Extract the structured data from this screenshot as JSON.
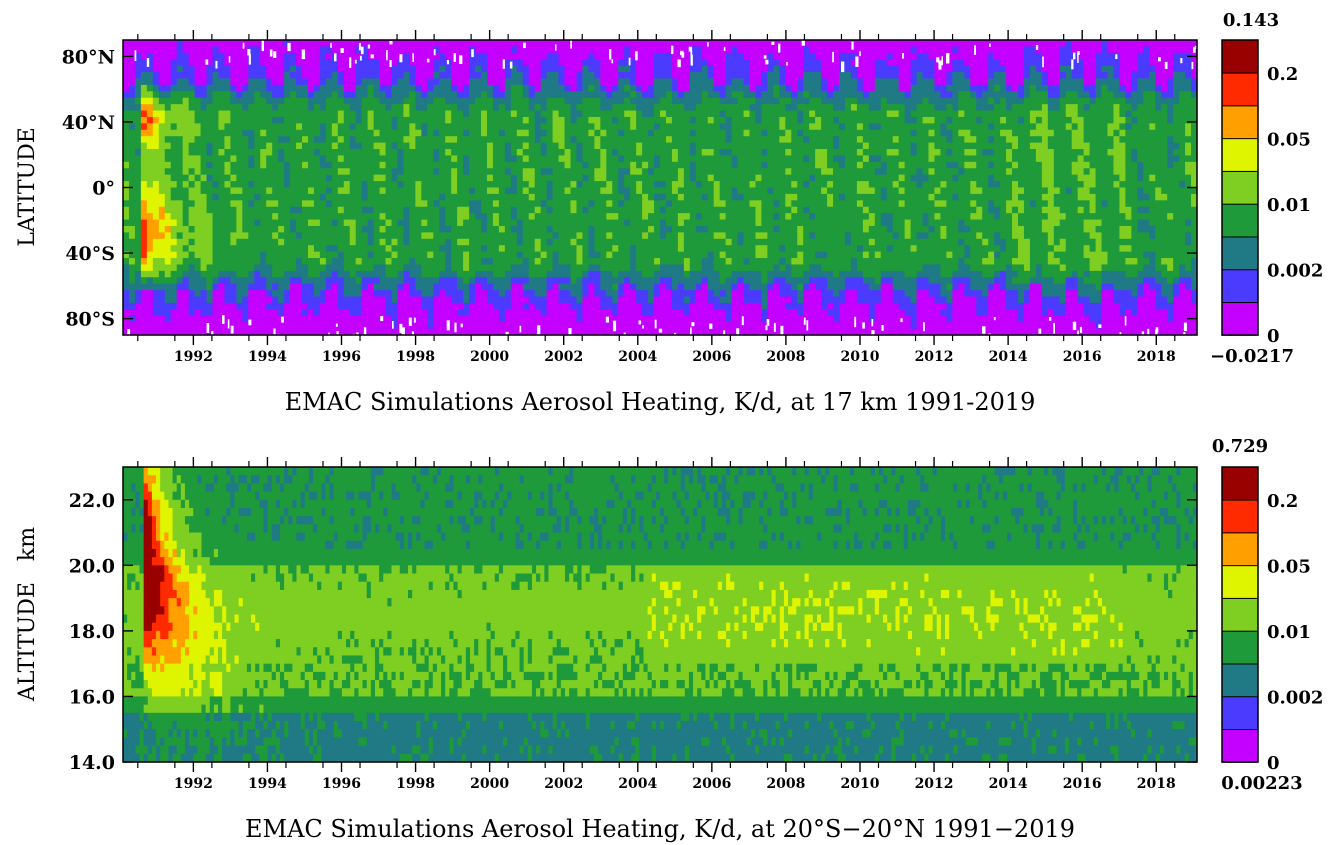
{
  "colors": {
    "levels": [
      "#c400ff",
      "#4a3bff",
      "#1f7a86",
      "#1f9a3a",
      "#7fce22",
      "#dff500",
      "#ff9f00",
      "#ff2a00",
      "#990000"
    ],
    "axis": "#000000"
  },
  "chart_data": [
    {
      "type": "heatmap",
      "title": "EMAC Simulations Aerosol Heating, K/d, at 17 km 1991-2019",
      "xlabel": "",
      "ylabel": "LATITUDE",
      "xlim": [
        1990.6,
        2019.6
      ],
      "ylim": [
        -90,
        90
      ],
      "x_ticks": [
        "1992",
        "1994",
        "1996",
        "1998",
        "2000",
        "2002",
        "2004",
        "2006",
        "2008",
        "2010",
        "2012",
        "2014",
        "2016",
        "2018"
      ],
      "y_ticks": [
        {
          "value": 80,
          "label": "80°N"
        },
        {
          "value": 40,
          "label": "40°N"
        },
        {
          "value": 0,
          "label": "0°"
        },
        {
          "value": -40,
          "label": "40°S"
        },
        {
          "value": -80,
          "label": "80°S"
        }
      ],
      "colorbar": {
        "max_label": "0.143",
        "min_label": "−0.0217",
        "level_labels": [
          "0",
          "0.002",
          "0.01",
          "0.05",
          "0.2"
        ]
      }
    },
    {
      "type": "heatmap",
      "title": "EMAC Simulations Aerosol Heating, K/d, at 20°S−20°N 1991−2019",
      "xlabel": "",
      "ylabel": "ALTITUDE   km",
      "xlim": [
        1990.6,
        2019.6
      ],
      "ylim": [
        14,
        23
      ],
      "x_ticks": [
        "1992",
        "1994",
        "1996",
        "1998",
        "2000",
        "2002",
        "2004",
        "2006",
        "2008",
        "2010",
        "2012",
        "2014",
        "2016",
        "2018"
      ],
      "y_ticks": [
        {
          "value": 22,
          "label": "22.0"
        },
        {
          "value": 20,
          "label": "20.0"
        },
        {
          "value": 18,
          "label": "18.0"
        },
        {
          "value": 16,
          "label": "16.0"
        },
        {
          "value": 14,
          "label": "14.0"
        }
      ],
      "colorbar": {
        "max_label": "0.729",
        "min_label": "0.00223",
        "level_labels": [
          "0",
          "0.002",
          "0.01",
          "0.05",
          "0.2"
        ]
      }
    }
  ]
}
